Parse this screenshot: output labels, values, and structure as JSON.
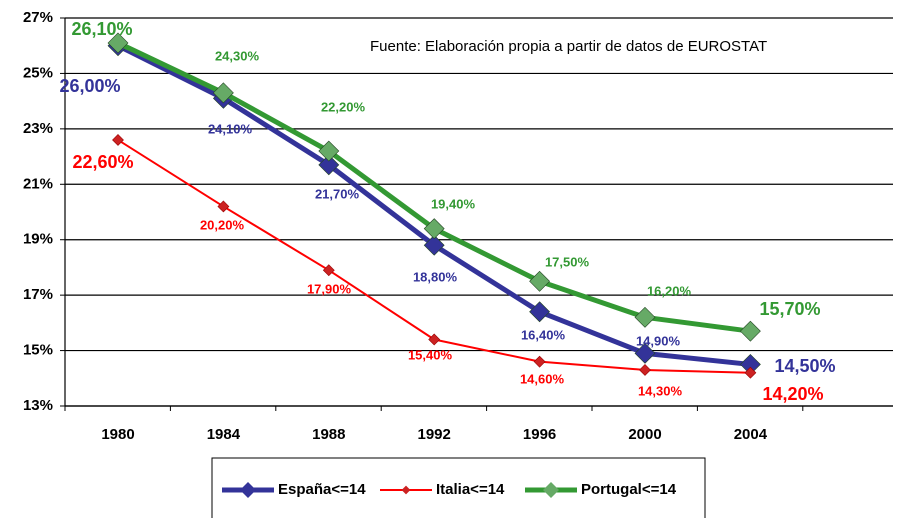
{
  "chart_data": {
    "type": "line",
    "annotation": "Fuente: Elaboración propia a partir de datos de EUROSTAT",
    "categories": [
      "1980",
      "1984",
      "1988",
      "1992",
      "1996",
      "2000",
      "2004"
    ],
    "series": [
      {
        "name": "España<=14",
        "color": "#333399",
        "values": [
          26.0,
          24.1,
          21.7,
          18.8,
          16.4,
          14.9,
          14.5
        ],
        "value_labels": [
          "26,00%",
          "24,10%",
          "21,70%",
          "18,80%",
          "16,40%",
          "14,90%",
          "14,50%"
        ]
      },
      {
        "name": "Italia<=14",
        "color": "#ff0000",
        "values": [
          22.6,
          20.2,
          17.9,
          15.4,
          14.6,
          14.3,
          14.2
        ],
        "value_labels": [
          "22,60%",
          "20,20%",
          "17,90%",
          "15,40%",
          "14,60%",
          "14,30%",
          "14,20%"
        ]
      },
      {
        "name": "Portugal<=14",
        "color": "#339933",
        "values": [
          26.1,
          24.3,
          22.2,
          19.4,
          17.5,
          16.2,
          15.7
        ],
        "value_labels": [
          "26,10%",
          "24,30%",
          "22,20%",
          "19,40%",
          "17,50%",
          "16,20%",
          "15,70%"
        ]
      }
    ],
    "ylim": [
      13,
      27
    ],
    "yticks": [
      {
        "value": 13,
        "label": "13%"
      },
      {
        "value": 15,
        "label": "15%"
      },
      {
        "value": 17,
        "label": "17%"
      },
      {
        "value": 19,
        "label": "19%"
      },
      {
        "value": 21,
        "label": "21%"
      },
      {
        "value": 23,
        "label": "23%"
      },
      {
        "value": 25,
        "label": "25%"
      },
      {
        "value": 27,
        "label": "27%"
      }
    ],
    "grid": true
  }
}
